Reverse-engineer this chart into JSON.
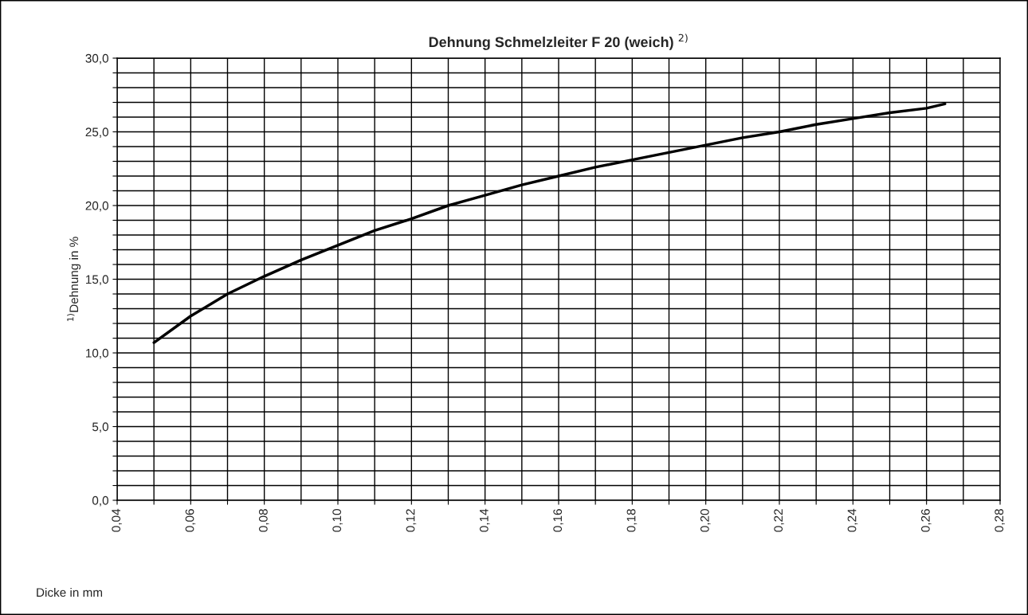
{
  "chart_data": {
    "type": "line",
    "title": "Dehnung Schmelzleiter F 20 (weich) $^{2)}$",
    "annotations": [
      "Dicke in mm"
    ],
    "ylabel": "$^{1)}$Dehnung in %",
    "x": [
      0.05,
      0.06,
      0.07,
      0.08,
      0.09,
      0.1,
      0.11,
      0.12,
      0.13,
      0.14,
      0.15,
      0.16,
      0.17,
      0.18,
      0.19,
      0.2,
      0.21,
      0.22,
      0.23,
      0.24,
      0.25,
      0.26,
      0.265
    ],
    "series": [
      {
        "color": "#000000",
        "values": [
          10.7,
          12.5,
          14.0,
          15.2,
          16.3,
          17.3,
          18.3,
          19.1,
          20.0,
          20.7,
          21.4,
          22.0,
          22.6,
          23.1,
          23.6,
          24.1,
          24.6,
          25.0,
          25.5,
          25.9,
          26.3,
          26.6,
          26.9
        ]
      }
    ],
    "xlim": [
      0.04,
      0.28
    ],
    "xticks": [
      {
        "value": 0.04,
        "label": "0,04"
      },
      {
        "value": 0.05,
        "label": null
      },
      {
        "value": 0.06,
        "label": "0,06"
      },
      {
        "value": 0.07,
        "label": null
      },
      {
        "value": 0.08,
        "label": "0,08"
      },
      {
        "value": 0.09,
        "label": null
      },
      {
        "value": 0.1,
        "label": "0,10"
      },
      {
        "value": 0.11,
        "label": null
      },
      {
        "value": 0.12,
        "label": "0,12"
      },
      {
        "value": 0.13,
        "label": null
      },
      {
        "value": 0.14,
        "label": "0,14"
      },
      {
        "value": 0.15,
        "label": null
      },
      {
        "value": 0.16,
        "label": "0,16"
      },
      {
        "value": 0.17,
        "label": null
      },
      {
        "value": 0.18,
        "label": "0,18"
      },
      {
        "value": 0.19,
        "label": null
      },
      {
        "value": 0.2,
        "label": "0,20"
      },
      {
        "value": 0.21,
        "label": null
      },
      {
        "value": 0.22,
        "label": "0,22"
      },
      {
        "value": 0.23,
        "label": null
      },
      {
        "value": 0.24,
        "label": "0,24"
      },
      {
        "value": 0.25,
        "label": null
      },
      {
        "value": 0.26,
        "label": "0,26"
      },
      {
        "value": 0.27,
        "label": null
      },
      {
        "value": 0.28,
        "label": "0,28"
      }
    ],
    "ylim": [
      0,
      30
    ],
    "yticks": [
      {
        "value": 0,
        "label": "0,0"
      },
      {
        "value": 1,
        "label": null
      },
      {
        "value": 2,
        "label": null
      },
      {
        "value": 3,
        "label": null
      },
      {
        "value": 4,
        "label": null
      },
      {
        "value": 5,
        "label": "5,0"
      },
      {
        "value": 6,
        "label": null
      },
      {
        "value": 7,
        "label": null
      },
      {
        "value": 8,
        "label": null
      },
      {
        "value": 9,
        "label": null
      },
      {
        "value": 10,
        "label": "10,0"
      },
      {
        "value": 11,
        "label": null
      },
      {
        "value": 12,
        "label": null
      },
      {
        "value": 13,
        "label": null
      },
      {
        "value": 14,
        "label": null
      },
      {
        "value": 15,
        "label": "15,0"
      },
      {
        "value": 16,
        "label": null
      },
      {
        "value": 17,
        "label": null
      },
      {
        "value": 18,
        "label": null
      },
      {
        "value": 19,
        "label": null
      },
      {
        "value": 20,
        "label": "20,0"
      },
      {
        "value": 21,
        "label": null
      },
      {
        "value": 22,
        "label": null
      },
      {
        "value": 23,
        "label": null
      },
      {
        "value": 24,
        "label": null
      },
      {
        "value": 25,
        "label": "25,0"
      },
      {
        "value": 26,
        "label": null
      },
      {
        "value": 27,
        "label": null
      },
      {
        "value": 28,
        "label": null
      },
      {
        "value": 29,
        "label": null
      },
      {
        "value": 30,
        "label": "30,0"
      }
    ],
    "grid": true,
    "legend": false
  }
}
